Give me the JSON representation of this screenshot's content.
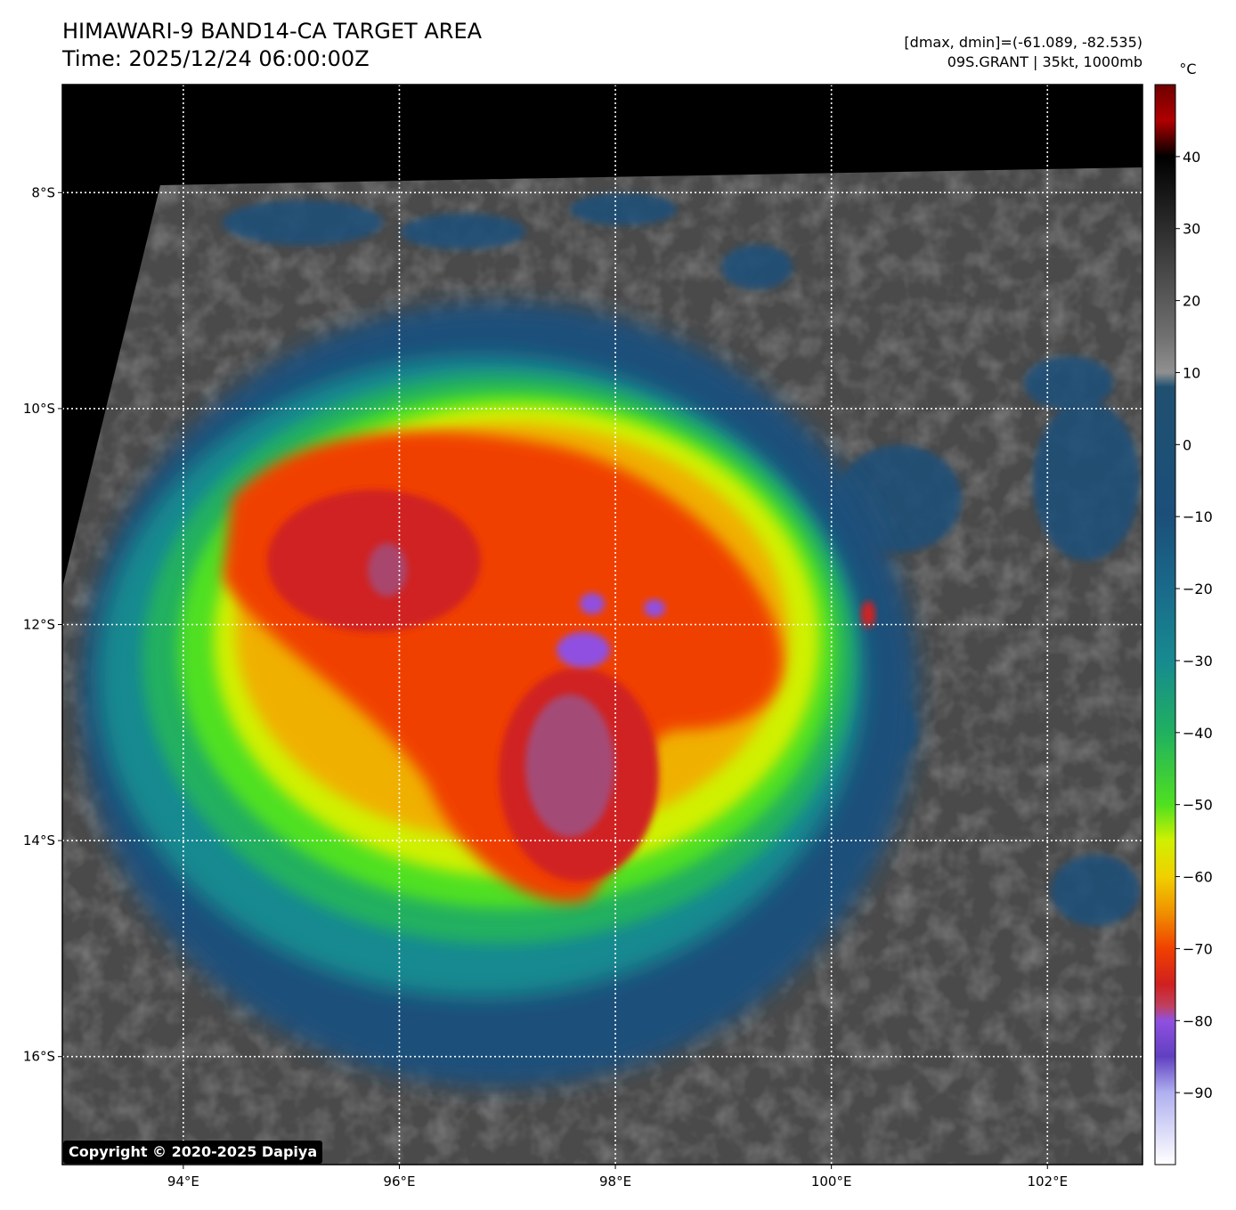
{
  "title": {
    "line1": "HIMAWARI-9 BAND14-CA TARGET AREA",
    "line2": "Time: 2025/12/24 06:00:00Z"
  },
  "info": {
    "line1": "[dmax, dmin]=(-61.089, -82.535)",
    "line2": "09S.GRANT | 35kt, 1000mb"
  },
  "map": {
    "lat_labels": [
      "8°S",
      "10°S",
      "12°S",
      "14°S",
      "16°S"
    ],
    "lon_labels": [
      "94°E",
      "96°E",
      "98°E",
      "100°E",
      "102°E"
    ],
    "lat_values": [
      -8,
      -10,
      -12,
      -14,
      -16
    ],
    "lon_values": [
      94,
      96,
      98,
      100,
      102
    ],
    "lon_range": [
      92.88,
      102.88
    ],
    "lat_range": [
      -17.0,
      -7.0
    ]
  },
  "colorbar": {
    "unit": "°C",
    "tick_labels": [
      "40",
      "30",
      "20",
      "10",
      "0",
      "−10",
      "−20",
      "−30",
      "−40",
      "−50",
      "−60",
      "−70",
      "−80",
      "−90"
    ],
    "tick_values": [
      40,
      30,
      20,
      10,
      0,
      -10,
      -20,
      -30,
      -40,
      -50,
      -60,
      -70,
      -80,
      -90
    ],
    "range": [
      -100,
      50
    ],
    "stops": [
      {
        "t": 50,
        "color": "#6e0000"
      },
      {
        "t": 45,
        "color": "#b00000"
      },
      {
        "t": 40,
        "color": "#000000"
      },
      {
        "t": 15,
        "color": "#707070"
      },
      {
        "t": 10,
        "color": "#909090"
      },
      {
        "t": 8,
        "color": "#205070"
      },
      {
        "t": -10,
        "color": "#1b4f7a"
      },
      {
        "t": -20,
        "color": "#1a6a8a"
      },
      {
        "t": -30,
        "color": "#178a90"
      },
      {
        "t": -40,
        "color": "#20b060"
      },
      {
        "t": -50,
        "color": "#50e020"
      },
      {
        "t": -55,
        "color": "#d0f000"
      },
      {
        "t": -60,
        "color": "#f0d000"
      },
      {
        "t": -65,
        "color": "#f09000"
      },
      {
        "t": -70,
        "color": "#f04000"
      },
      {
        "t": -75,
        "color": "#d02020"
      },
      {
        "t": -78,
        "color": "#c04060"
      },
      {
        "t": -80,
        "color": "#9050e0"
      },
      {
        "t": -85,
        "color": "#6040c0"
      },
      {
        "t": -90,
        "color": "#b0b0f0"
      },
      {
        "t": -100,
        "color": "#ffffff"
      }
    ]
  },
  "copyright": "Copyright © 2020-2025 Dapiya"
}
